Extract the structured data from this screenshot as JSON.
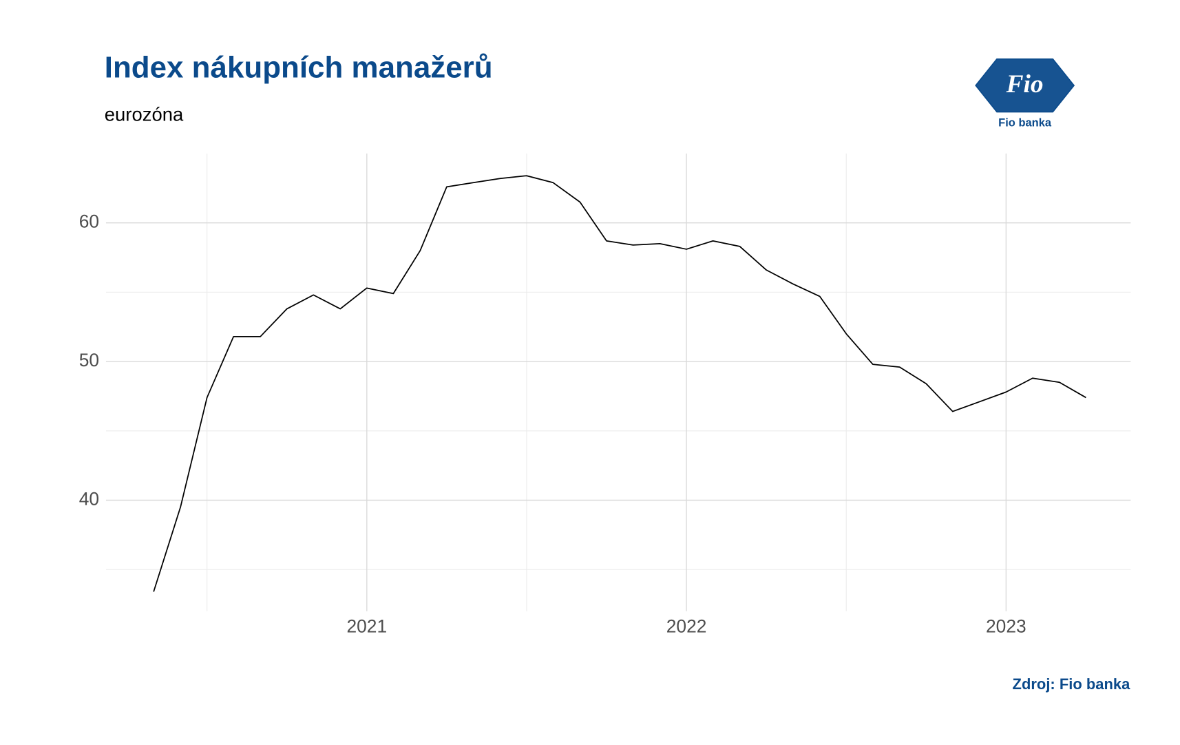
{
  "chart_data": {
    "type": "line",
    "title": "Index nákupních manažerů",
    "subtitle": "eurozóna",
    "source": "Zdroj: Fio banka",
    "x": [
      2020.333,
      2020.417,
      2020.5,
      2020.583,
      2020.667,
      2020.75,
      2020.833,
      2020.917,
      2021.0,
      2021.083,
      2021.167,
      2021.25,
      2021.333,
      2021.417,
      2021.5,
      2021.583,
      2021.667,
      2021.75,
      2021.833,
      2021.917,
      2022.0,
      2022.083,
      2022.167,
      2022.25,
      2022.333,
      2022.417,
      2022.5,
      2022.583,
      2022.667,
      2022.75,
      2022.833,
      2022.917,
      2023.0,
      2023.083,
      2023.167,
      2023.25
    ],
    "series": [
      {
        "color": "#000000",
        "values": [
          33.4,
          39.5,
          47.4,
          51.8,
          51.8,
          53.8,
          54.8,
          53.8,
          55.3,
          54.9,
          58.0,
          62.6,
          62.9,
          63.2,
          63.4,
          62.9,
          61.5,
          58.7,
          58.4,
          58.5,
          58.1,
          58.7,
          58.3,
          56.6,
          55.6,
          54.7,
          52.0,
          49.8,
          49.6,
          48.4,
          46.4,
          47.1,
          47.8,
          48.8,
          48.5,
          47.4
        ]
      }
    ],
    "xlim": [
      2020.184,
      2023.39
    ],
    "ylim": [
      32.0,
      65.0
    ],
    "xticks": [
      2021,
      2022,
      2023
    ],
    "yticks": [
      40,
      50,
      60
    ],
    "xminor": [
      2020.5,
      2021.5,
      2022.5
    ],
    "yminor": [
      35,
      45,
      55
    ],
    "grid": true
  },
  "logo": {
    "mark": "Fio",
    "name": "Fio banka"
  }
}
